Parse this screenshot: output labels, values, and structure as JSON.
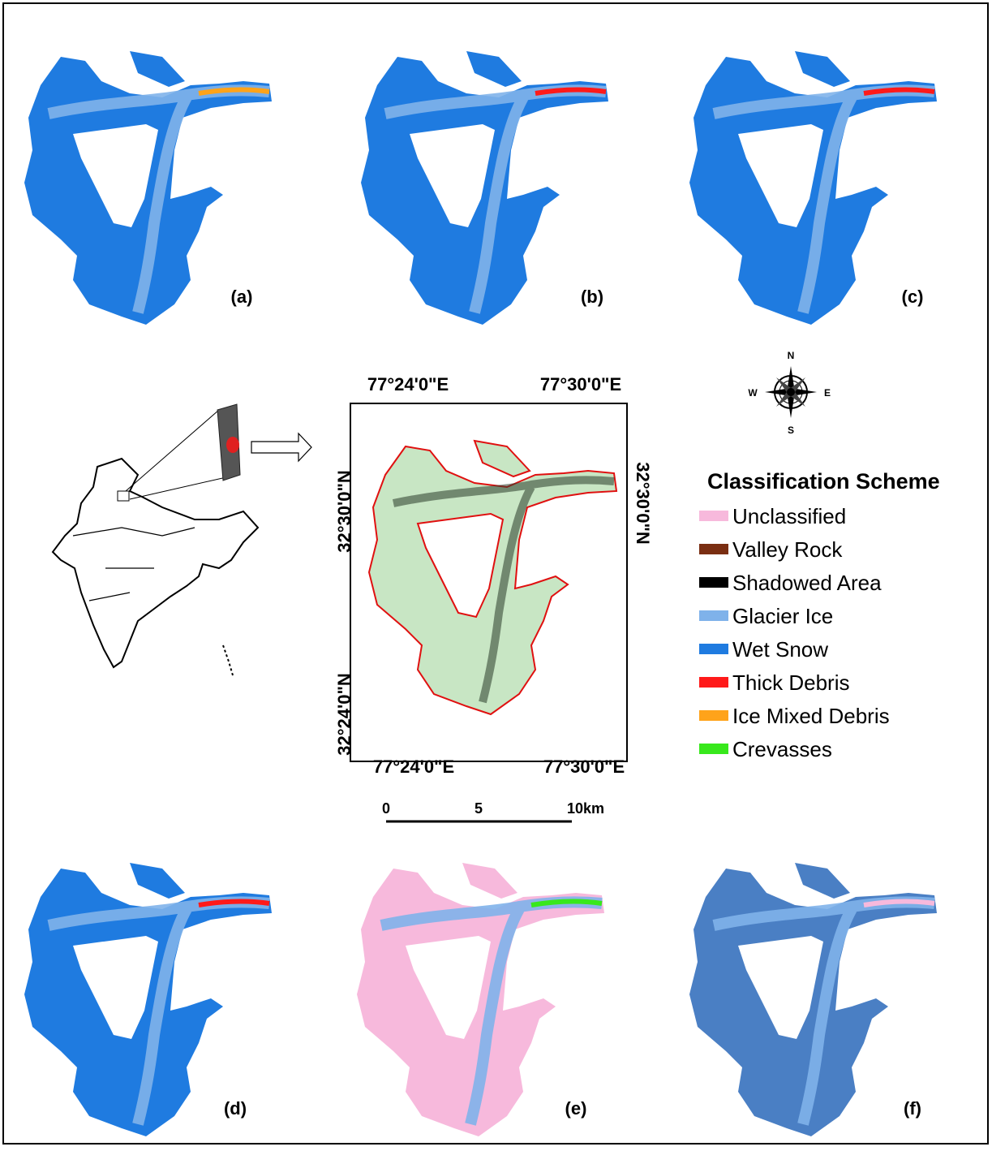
{
  "panels": [
    {
      "label": "(a)"
    },
    {
      "label": "(b)"
    },
    {
      "label": "(c)"
    },
    {
      "label": "(d)"
    },
    {
      "label": "(e)"
    },
    {
      "label": "(f)"
    }
  ],
  "map": {
    "top_labels": [
      "77°24'0\"E",
      "77°30'0\"E"
    ],
    "bottom_labels": [
      "77°24'0\"E",
      "77°30'0\"E"
    ],
    "left_labels": [
      "32°30'0\"N",
      "32°24'0\"N"
    ],
    "right_labels": [
      "32°30'0\"N"
    ]
  },
  "scale_bar": {
    "labels": [
      "0",
      "5",
      "10km"
    ]
  },
  "compass": {
    "n": "N",
    "s": "S",
    "e": "E",
    "w": "W"
  },
  "legend": {
    "title": "Classification Scheme",
    "items": [
      {
        "label": "Unclassified",
        "color": "#f7b9dc"
      },
      {
        "label": "Valley Rock",
        "color": "#7a2e12"
      },
      {
        "label": "Shadowed Area",
        "color": "#000000"
      },
      {
        "label": "Glacier Ice",
        "color": "#7fb2ea"
      },
      {
        "label": "Wet Snow",
        "color": "#1f7be0"
      },
      {
        "label": "Thick Debris",
        "color": "#ff1a1a"
      },
      {
        "label": "Ice Mixed Debris",
        "color": "#ffa31a"
      },
      {
        "label": "Crevasses",
        "color": "#38e81c"
      }
    ]
  }
}
